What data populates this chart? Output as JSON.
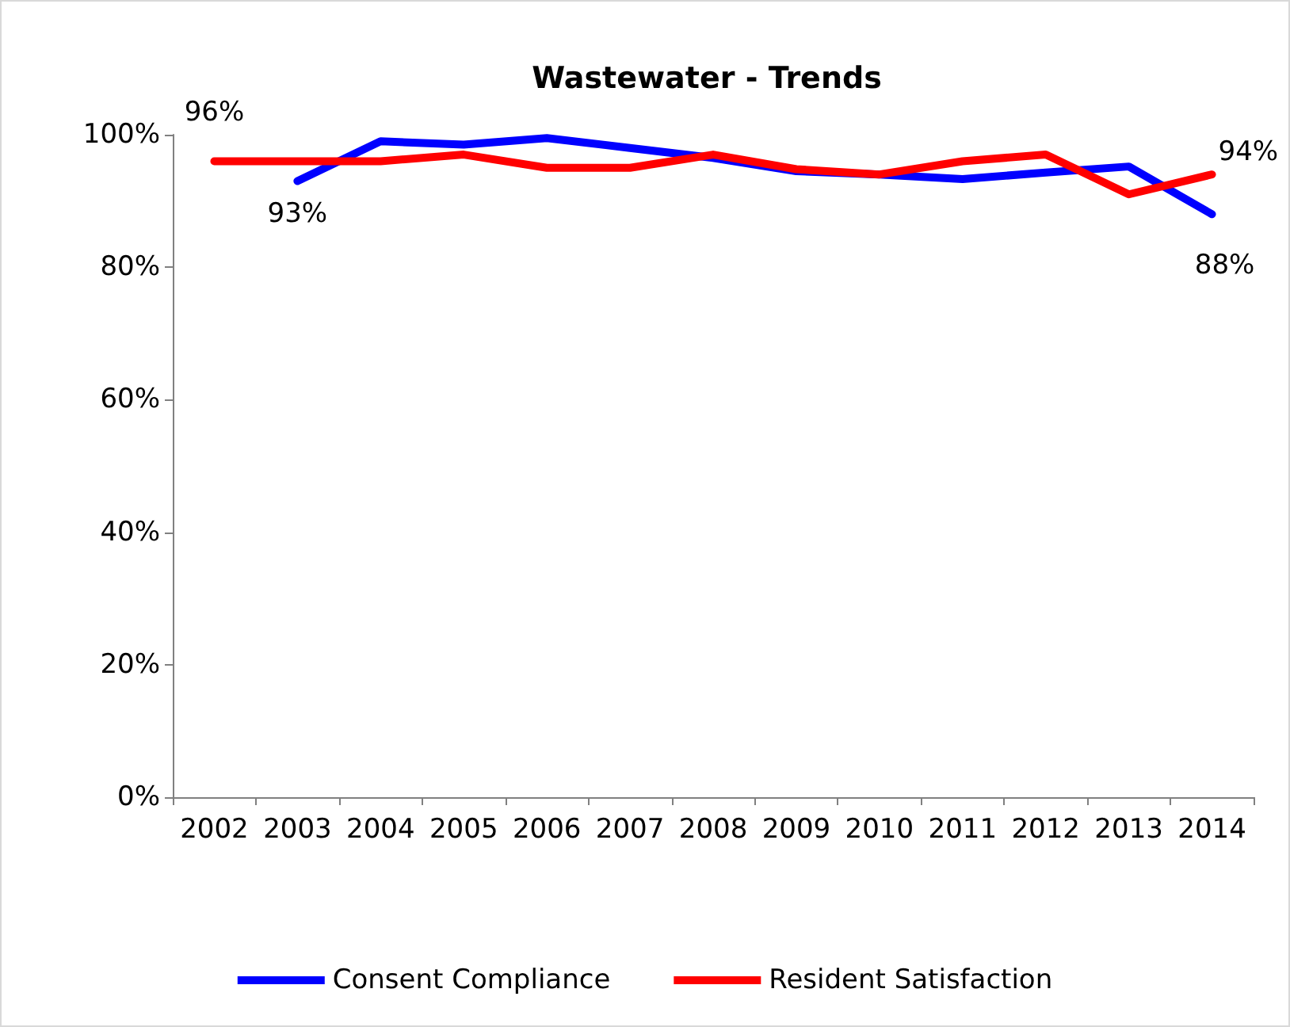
{
  "chart_data": {
    "type": "line",
    "title": "Wastewater - Trends",
    "categories": [
      "2002",
      "2003",
      "2004",
      "2005",
      "2006",
      "2007",
      "2008",
      "2009",
      "2010",
      "2011",
      "2012",
      "2013",
      "2014"
    ],
    "series": [
      {
        "name": "Consent Compliance",
        "color": "#0000ff",
        "values": [
          null,
          93,
          99,
          98.5,
          99.5,
          98,
          96.5,
          94.5,
          94,
          93.3,
          94.3,
          95.2,
          88
        ],
        "value_labels": [
          null,
          "93%",
          null,
          null,
          null,
          null,
          null,
          null,
          null,
          null,
          null,
          null,
          "88%"
        ]
      },
      {
        "name": "Resident Satisfaction",
        "color": "#ff0000",
        "values": [
          96,
          96,
          96,
          97,
          95,
          95,
          97,
          94.8,
          94,
          96,
          97,
          91,
          94
        ],
        "value_labels": [
          "96%",
          null,
          null,
          null,
          null,
          null,
          null,
          null,
          null,
          null,
          null,
          null,
          "94%"
        ]
      }
    ],
    "ylim": [
      0,
      100
    ],
    "yticks": [
      {
        "value": 0,
        "label": "0%"
      },
      {
        "value": 20,
        "label": "20%"
      },
      {
        "value": 40,
        "label": "40%"
      },
      {
        "value": 60,
        "label": "60%"
      },
      {
        "value": 80,
        "label": "80%"
      },
      {
        "value": 100,
        "label": "100%"
      }
    ],
    "grid": false,
    "legend": "bottom",
    "marker": "none",
    "line_style": "solid"
  }
}
